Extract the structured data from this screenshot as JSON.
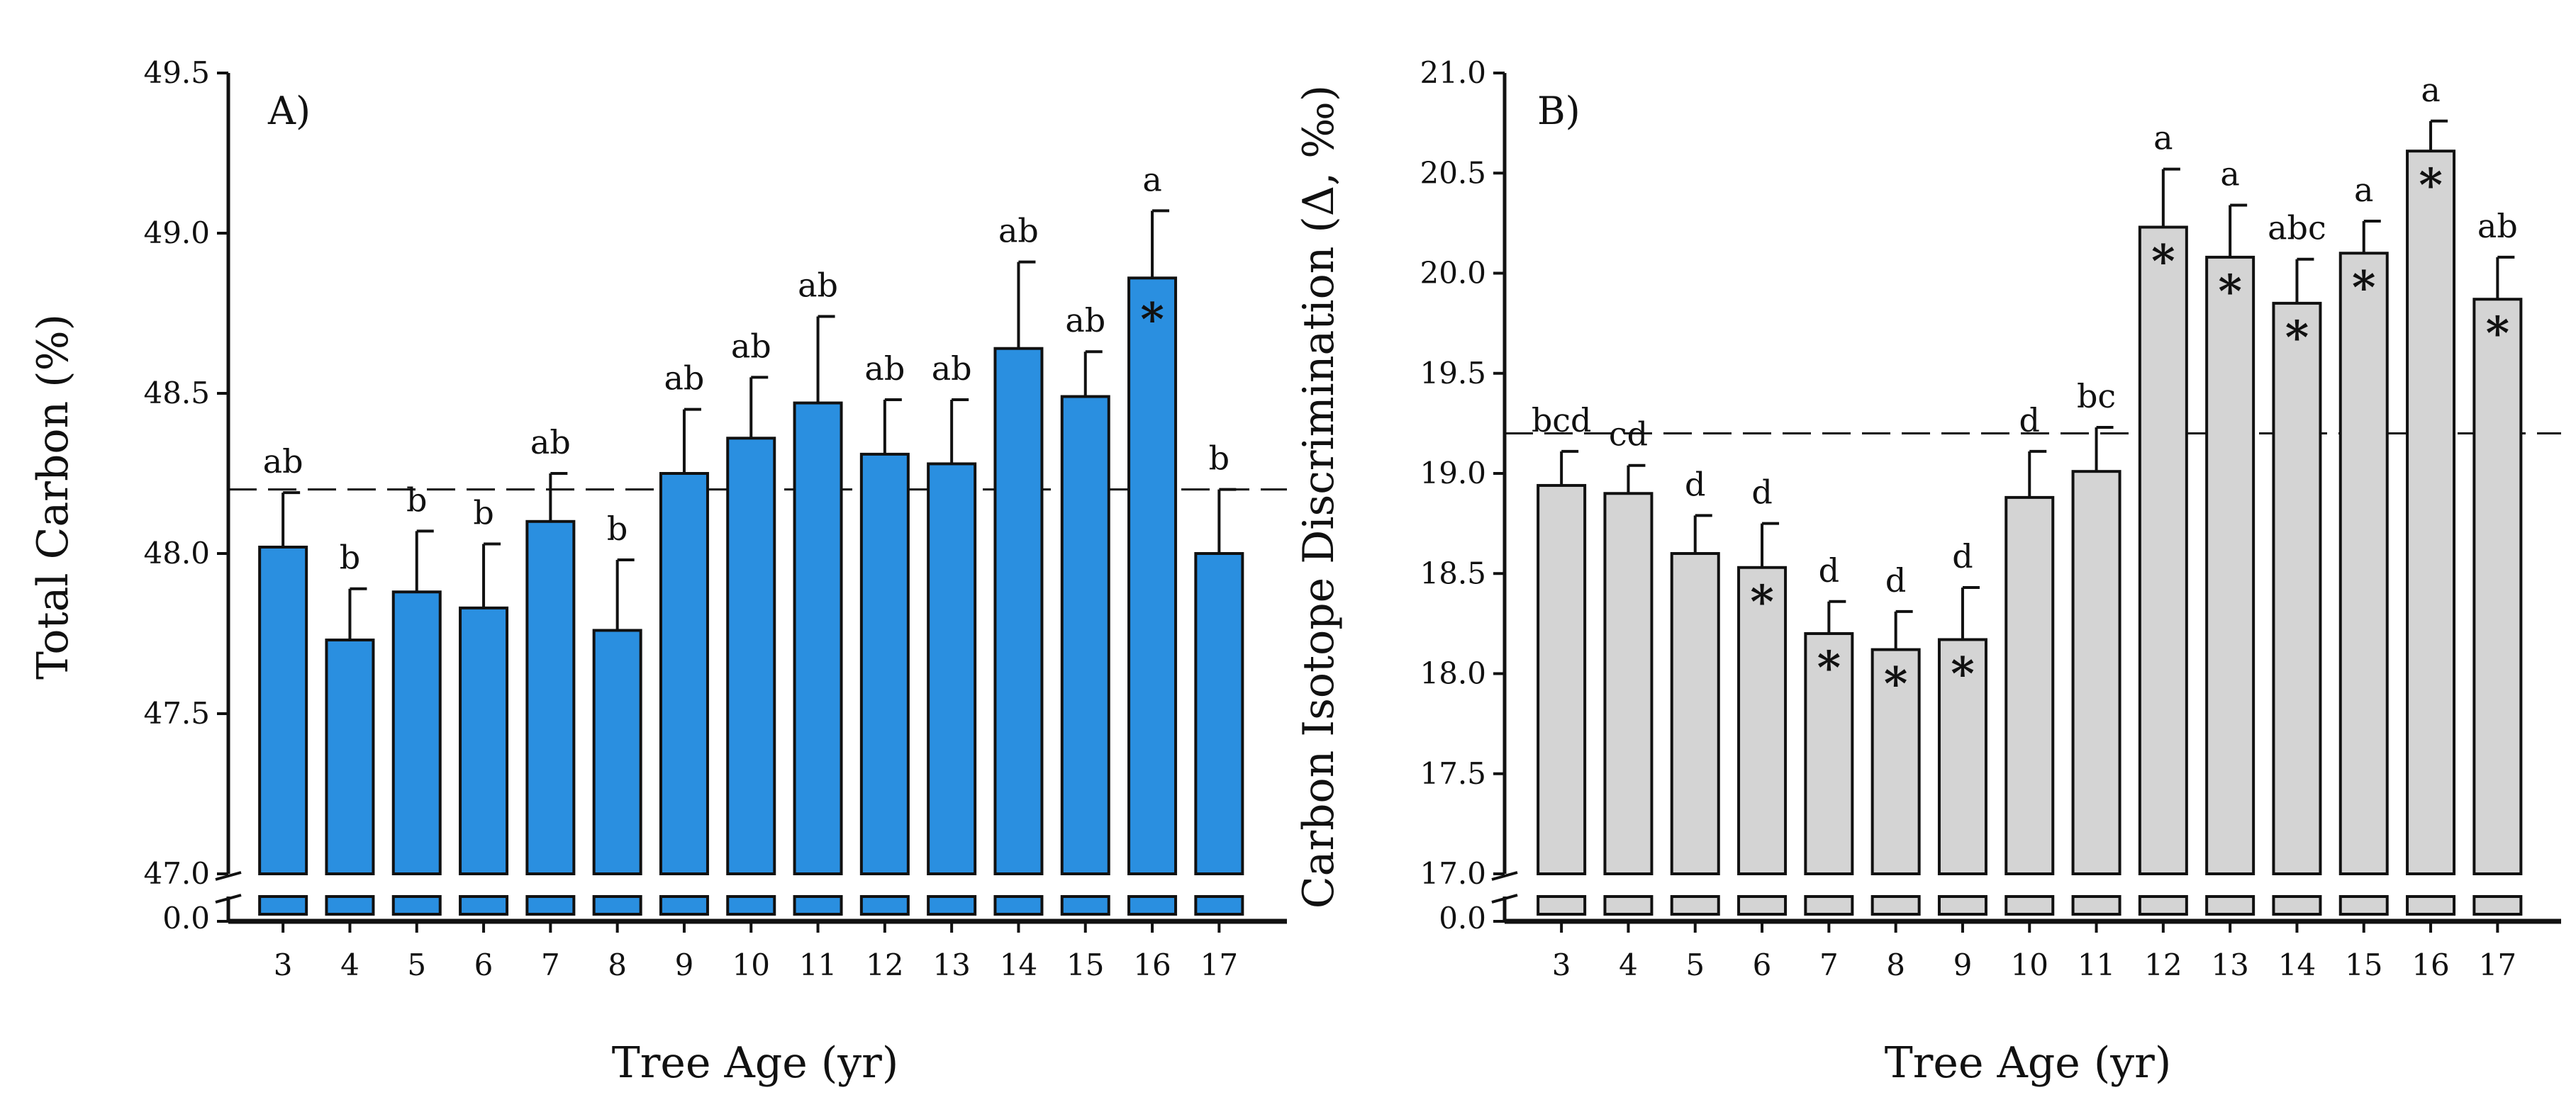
{
  "chart_data": [
    {
      "type": "bar",
      "panel_label": "A)",
      "xlabel": "Tree Age (yr)",
      "ylabel": "Total Carbon (%)",
      "ylim": [
        47.0,
        49.5
      ],
      "broken_axis_low_tick": "0.0",
      "yticks": [
        "47.0",
        "47.5",
        "48.0",
        "48.5",
        "49.0",
        "49.5"
      ],
      "reference_line": 48.2,
      "bar_color": "#2a8fe0",
      "categories": [
        "3",
        "4",
        "5",
        "6",
        "7",
        "8",
        "9",
        "10",
        "11",
        "12",
        "13",
        "14",
        "15",
        "16",
        "17"
      ],
      "values": [
        48.02,
        47.73,
        47.88,
        47.83,
        48.1,
        47.76,
        48.25,
        48.36,
        48.47,
        48.31,
        48.28,
        48.64,
        48.49,
        48.86,
        48.0
      ],
      "errors": [
        0.17,
        0.16,
        0.19,
        0.2,
        0.15,
        0.22,
        0.2,
        0.19,
        0.27,
        0.17,
        0.2,
        0.27,
        0.14,
        0.21,
        0.2
      ],
      "significance_letters": [
        "ab",
        "b",
        "b",
        "b",
        "ab",
        "b",
        "ab",
        "ab",
        "ab",
        "ab",
        "ab",
        "ab",
        "ab",
        "a",
        "b"
      ],
      "star_marks": [
        false,
        false,
        false,
        false,
        false,
        false,
        false,
        false,
        false,
        false,
        false,
        false,
        false,
        true,
        false
      ],
      "star_symbol": "*"
    },
    {
      "type": "bar",
      "panel_label": "B)",
      "xlabel": "Tree Age (yr)",
      "ylabel": "Carbon Isotope Discrimination (Δ, ‰)",
      "ylim": [
        17.0,
        21.0
      ],
      "broken_axis_low_tick": "0.0",
      "yticks": [
        "17.0",
        "17.5",
        "18.0",
        "18.5",
        "19.0",
        "19.5",
        "20.0",
        "20.5",
        "21.0"
      ],
      "reference_line": 19.2,
      "bar_color": "#d4d4d4",
      "categories": [
        "3",
        "4",
        "5",
        "6",
        "7",
        "8",
        "9",
        "10",
        "11",
        "12",
        "13",
        "14",
        "15",
        "16",
        "17"
      ],
      "values": [
        18.94,
        18.9,
        18.6,
        18.53,
        18.2,
        18.12,
        18.17,
        18.88,
        19.01,
        20.23,
        20.08,
        19.85,
        20.1,
        20.61,
        19.87
      ],
      "errors": [
        0.17,
        0.14,
        0.19,
        0.22,
        0.16,
        0.19,
        0.26,
        0.23,
        0.22,
        0.29,
        0.26,
        0.22,
        0.16,
        0.15,
        0.21
      ],
      "significance_letters": [
        "bcd",
        "cd",
        "d",
        "d",
        "d",
        "d",
        "d",
        "d",
        "bc",
        "a",
        "a",
        "abc",
        "a",
        "a",
        "ab"
      ],
      "star_marks": [
        false,
        false,
        false,
        true,
        true,
        true,
        true,
        false,
        false,
        true,
        true,
        true,
        true,
        true,
        true
      ],
      "star_symbol": "*"
    }
  ]
}
